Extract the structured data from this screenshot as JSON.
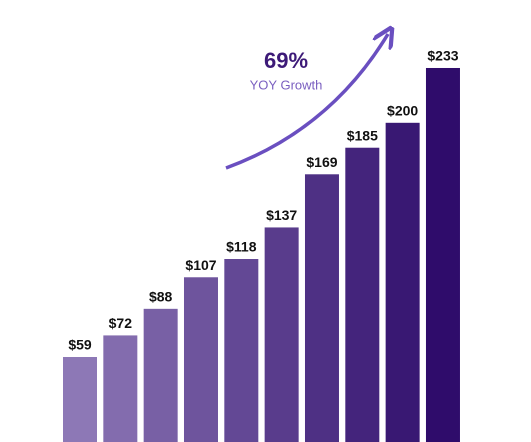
{
  "chart_data": {
    "type": "bar",
    "annotation": {
      "value": "69%",
      "label": "YOY Growth"
    },
    "values": [
      59,
      72,
      88,
      107,
      118,
      137,
      169,
      185,
      200,
      233
    ],
    "value_labels": [
      "$59",
      "$72",
      "$88",
      "$107",
      "$118",
      "$137",
      "$169",
      "$185",
      "$200",
      "$233"
    ],
    "colors": [
      "#8d78b6",
      "#836cae",
      "#7860a5",
      "#6e549d",
      "#634895",
      "#593c8c",
      "#4e3084",
      "#44247c",
      "#391873",
      "#2f0c6b"
    ]
  }
}
